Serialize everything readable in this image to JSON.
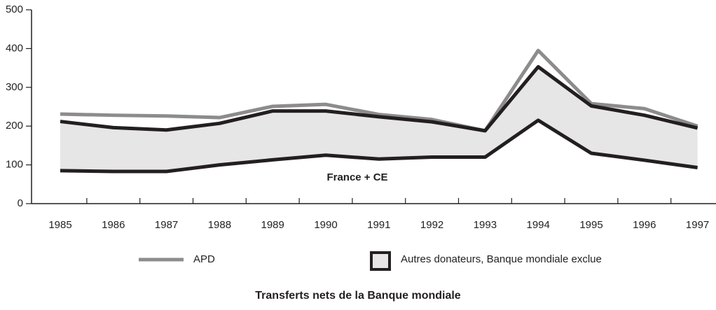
{
  "chart_data": {
    "type": "line",
    "title": "Transferts nets de la Banque mondiale",
    "annotation": "France + CE",
    "categories": [
      "1985",
      "1986",
      "1987",
      "1988",
      "1989",
      "1990",
      "1991",
      "1992",
      "1993",
      "1994",
      "1995",
      "1996",
      "1997"
    ],
    "series": [
      {
        "name": "APD",
        "color": "#8c8c8c",
        "values": [
          231,
          228,
          226,
          222,
          251,
          256,
          230,
          217,
          188,
          395,
          258,
          245,
          200
        ]
      },
      {
        "name": "Autres donateurs, Banque mondiale exclue",
        "color": "#231f20",
        "fill": "#e6e6e6",
        "values": [
          127,
          113,
          107,
          107,
          126,
          114,
          109,
          91,
          68,
          138,
          122,
          116,
          102
        ]
      },
      {
        "name": "France + CE",
        "color": "#231f20",
        "values": [
          85,
          83,
          83,
          100,
          113,
          125,
          115,
          120,
          120,
          215,
          130,
          112,
          93
        ]
      }
    ],
    "ylim": [
      0,
      500
    ],
    "yticks": [
      0,
      100,
      200,
      300,
      400,
      500
    ]
  }
}
